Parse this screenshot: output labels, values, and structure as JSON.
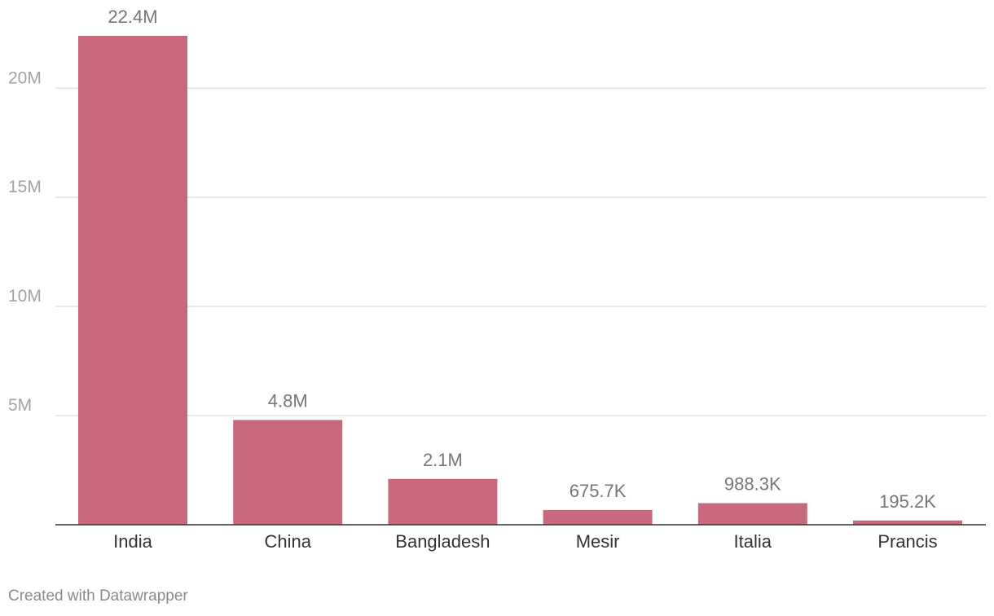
{
  "chart_data": {
    "type": "bar",
    "categories": [
      "India",
      "China",
      "Bangladesh",
      "Mesir",
      "Italia",
      "Prancis"
    ],
    "values": [
      22400000,
      4800000,
      2100000,
      675700,
      988300,
      195200
    ],
    "value_labels": [
      "22.4M",
      "4.8M",
      "2.1M",
      "675.7K",
      "988.3K",
      "195.2K"
    ],
    "y_ticks": [
      5000000,
      10000000,
      15000000,
      20000000
    ],
    "y_tick_labels": [
      "5M",
      "10M",
      "15M",
      "20M"
    ],
    "ylim": [
      0,
      22400000
    ],
    "grid": true,
    "bar_color": "#c8687d"
  },
  "footer": {
    "credit": "Created with Datawrapper"
  }
}
